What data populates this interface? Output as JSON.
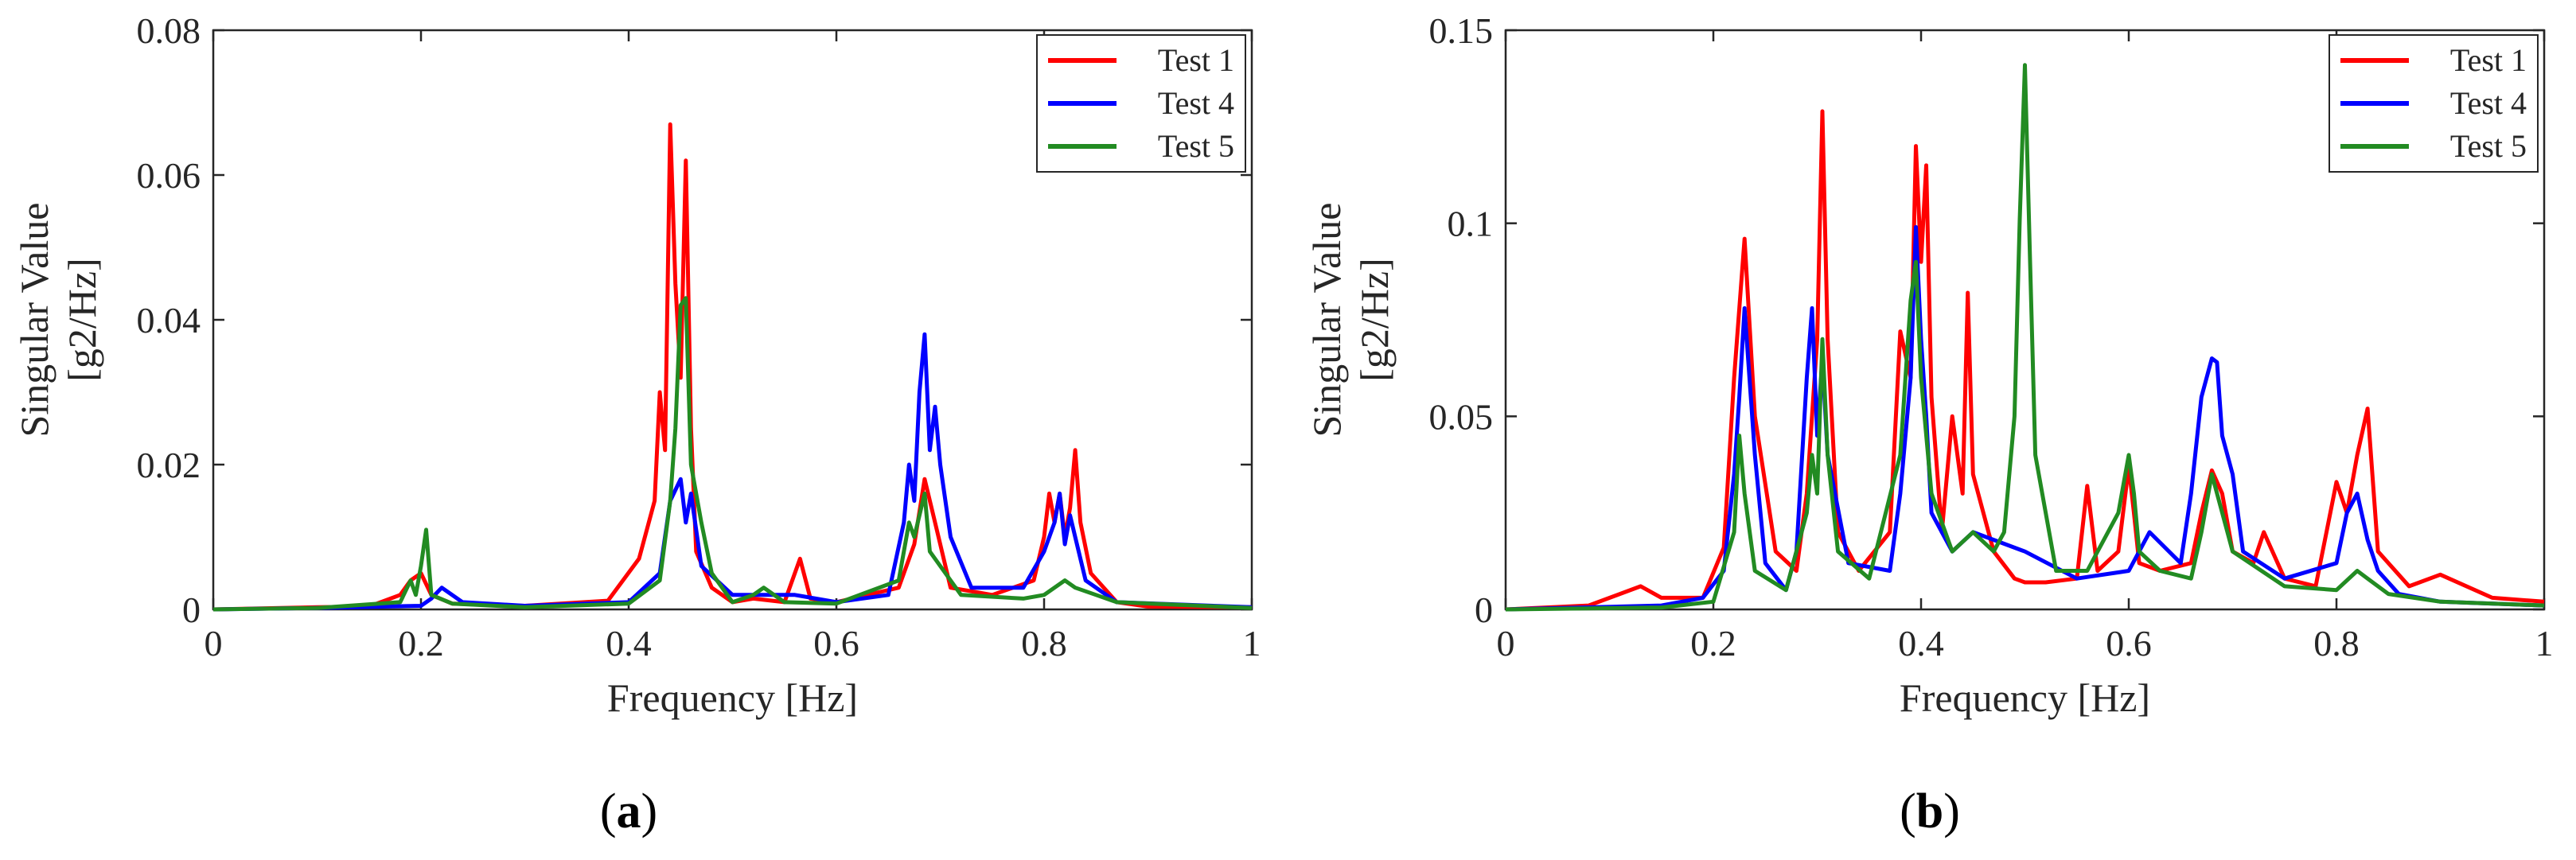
{
  "chart_data": [
    {
      "type": "line",
      "panel_label": "(a)",
      "panel_letter": "a",
      "xlabel": "Frequency [Hz]",
      "ylabel_line1": "Singular Value",
      "ylabel_line2": "[g2/Hz]",
      "xlim": [
        0,
        1
      ],
      "ylim": [
        0,
        0.08
      ],
      "xticks": [
        0,
        0.2,
        0.4,
        0.6,
        0.8,
        1
      ],
      "xtick_labels": [
        "0",
        "0.2",
        "0.4",
        "0.6",
        "0.8",
        "1"
      ],
      "yticks": [
        0,
        0.02,
        0.04,
        0.06,
        0.08
      ],
      "ytick_labels": [
        "0",
        "0.02",
        "0.04",
        "0.06",
        "0.08"
      ],
      "legend_position": "top-right",
      "series": [
        {
          "name": "Test 1",
          "color": "#ff0000",
          "x": [
            0,
            0.1,
            0.15,
            0.18,
            0.19,
            0.2,
            0.21,
            0.23,
            0.3,
            0.38,
            0.41,
            0.425,
            0.43,
            0.435,
            0.44,
            0.445,
            0.45,
            0.455,
            0.46,
            0.465,
            0.48,
            0.5,
            0.52,
            0.55,
            0.565,
            0.575,
            0.6,
            0.66,
            0.675,
            0.685,
            0.695,
            0.71,
            0.75,
            0.79,
            0.8,
            0.805,
            0.81,
            0.815,
            0.82,
            0.825,
            0.83,
            0.835,
            0.845,
            0.87,
            0.9,
            1
          ],
          "y": [
            0,
            0.0003,
            0.0004,
            0.002,
            0.004,
            0.005,
            0.002,
            0.0008,
            0.0005,
            0.0012,
            0.007,
            0.015,
            0.03,
            0.022,
            0.067,
            0.045,
            0.032,
            0.062,
            0.025,
            0.008,
            0.003,
            0.001,
            0.0015,
            0.001,
            0.007,
            0.0015,
            0.001,
            0.003,
            0.009,
            0.018,
            0.012,
            0.003,
            0.002,
            0.004,
            0.01,
            0.016,
            0.012,
            0.016,
            0.01,
            0.014,
            0.022,
            0.012,
            0.005,
            0.001,
            0.0004,
            0.0003
          ]
        },
        {
          "name": "Test 4",
          "color": "#0000ff",
          "x": [
            0,
            0.1,
            0.2,
            0.21,
            0.22,
            0.24,
            0.3,
            0.4,
            0.43,
            0.44,
            0.45,
            0.455,
            0.46,
            0.47,
            0.5,
            0.52,
            0.56,
            0.6,
            0.65,
            0.665,
            0.67,
            0.675,
            0.68,
            0.685,
            0.69,
            0.695,
            0.7,
            0.71,
            0.73,
            0.78,
            0.8,
            0.81,
            0.815,
            0.82,
            0.825,
            0.83,
            0.84,
            0.87,
            1
          ],
          "y": [
            0,
            0.0002,
            0.0005,
            0.0015,
            0.003,
            0.001,
            0.0005,
            0.001,
            0.005,
            0.015,
            0.018,
            0.012,
            0.016,
            0.006,
            0.002,
            0.002,
            0.002,
            0.001,
            0.002,
            0.012,
            0.02,
            0.015,
            0.03,
            0.038,
            0.022,
            0.028,
            0.02,
            0.01,
            0.003,
            0.003,
            0.008,
            0.012,
            0.016,
            0.009,
            0.013,
            0.01,
            0.004,
            0.001,
            0.0003
          ]
        },
        {
          "name": "Test 5",
          "color": "#228b22",
          "x": [
            0,
            0.1,
            0.18,
            0.19,
            0.195,
            0.2,
            0.205,
            0.21,
            0.23,
            0.3,
            0.4,
            0.43,
            0.44,
            0.445,
            0.45,
            0.455,
            0.46,
            0.47,
            0.48,
            0.5,
            0.52,
            0.53,
            0.55,
            0.6,
            0.66,
            0.67,
            0.675,
            0.685,
            0.69,
            0.7,
            0.72,
            0.78,
            0.8,
            0.82,
            0.83,
            0.85,
            0.87,
            1
          ],
          "y": [
            0,
            0.0002,
            0.001,
            0.004,
            0.002,
            0.006,
            0.011,
            0.002,
            0.0008,
            0.0003,
            0.0008,
            0.004,
            0.015,
            0.025,
            0.042,
            0.043,
            0.02,
            0.012,
            0.005,
            0.001,
            0.002,
            0.003,
            0.001,
            0.0008,
            0.004,
            0.012,
            0.01,
            0.016,
            0.008,
            0.006,
            0.002,
            0.0015,
            0.002,
            0.004,
            0.003,
            0.002,
            0.001,
            0.0002
          ]
        }
      ]
    },
    {
      "type": "line",
      "panel_label": "(b)",
      "panel_letter": "b",
      "xlabel": "Frequency [Hz]",
      "ylabel_line1": "Singular Value",
      "ylabel_line2": "[g2/Hz]",
      "xlim": [
        0,
        1
      ],
      "ylim": [
        0,
        0.15
      ],
      "xticks": [
        0,
        0.2,
        0.4,
        0.6,
        0.8,
        1
      ],
      "xtick_labels": [
        "0",
        "0.2",
        "0.4",
        "0.6",
        "0.8",
        "1"
      ],
      "yticks": [
        0,
        0.05,
        0.1,
        0.15
      ],
      "ytick_labels": [
        "0",
        "0.05",
        "0.1",
        "0.15"
      ],
      "legend_position": "top-right",
      "series": [
        {
          "name": "Test 1",
          "color": "#ff0000",
          "x": [
            0,
            0.08,
            0.13,
            0.15,
            0.19,
            0.21,
            0.22,
            0.23,
            0.24,
            0.26,
            0.28,
            0.29,
            0.3,
            0.305,
            0.31,
            0.32,
            0.34,
            0.37,
            0.38,
            0.39,
            0.395,
            0.4,
            0.405,
            0.41,
            0.42,
            0.43,
            0.44,
            0.445,
            0.45,
            0.47,
            0.49,
            0.5,
            0.52,
            0.55,
            0.56,
            0.57,
            0.59,
            0.6,
            0.605,
            0.61,
            0.63,
            0.66,
            0.67,
            0.68,
            0.69,
            0.7,
            0.72,
            0.73,
            0.75,
            0.78,
            0.8,
            0.81,
            0.82,
            0.83,
            0.84,
            0.87,
            0.9,
            0.95,
            1
          ],
          "y": [
            0,
            0.001,
            0.006,
            0.003,
            0.003,
            0.016,
            0.06,
            0.096,
            0.05,
            0.015,
            0.01,
            0.03,
            0.07,
            0.129,
            0.07,
            0.02,
            0.01,
            0.02,
            0.072,
            0.06,
            0.12,
            0.09,
            0.115,
            0.055,
            0.02,
            0.05,
            0.03,
            0.082,
            0.035,
            0.015,
            0.008,
            0.007,
            0.007,
            0.008,
            0.032,
            0.01,
            0.015,
            0.037,
            0.025,
            0.012,
            0.01,
            0.012,
            0.025,
            0.036,
            0.03,
            0.015,
            0.012,
            0.02,
            0.008,
            0.006,
            0.033,
            0.025,
            0.04,
            0.052,
            0.015,
            0.006,
            0.009,
            0.003,
            0.002
          ]
        },
        {
          "name": "Test 4",
          "color": "#0000ff",
          "x": [
            0,
            0.15,
            0.19,
            0.21,
            0.22,
            0.225,
            0.23,
            0.24,
            0.25,
            0.27,
            0.28,
            0.29,
            0.295,
            0.3,
            0.305,
            0.31,
            0.33,
            0.37,
            0.38,
            0.39,
            0.395,
            0.4,
            0.405,
            0.41,
            0.43,
            0.45,
            0.5,
            0.55,
            0.6,
            0.62,
            0.65,
            0.66,
            0.67,
            0.68,
            0.685,
            0.69,
            0.7,
            0.71,
            0.75,
            0.8,
            0.81,
            0.82,
            0.83,
            0.84,
            0.86,
            0.9,
            1
          ],
          "y": [
            0,
            0.001,
            0.003,
            0.01,
            0.035,
            0.055,
            0.078,
            0.04,
            0.012,
            0.005,
            0.015,
            0.06,
            0.078,
            0.045,
            0.065,
            0.04,
            0.012,
            0.01,
            0.03,
            0.06,
            0.099,
            0.07,
            0.05,
            0.025,
            0.015,
            0.02,
            0.015,
            0.008,
            0.01,
            0.02,
            0.012,
            0.03,
            0.055,
            0.065,
            0.064,
            0.045,
            0.035,
            0.015,
            0.008,
            0.012,
            0.025,
            0.03,
            0.018,
            0.01,
            0.004,
            0.002,
            0.001
          ]
        },
        {
          "name": "Test 5",
          "color": "#228b22",
          "x": [
            0,
            0.15,
            0.2,
            0.22,
            0.225,
            0.23,
            0.24,
            0.27,
            0.29,
            0.295,
            0.3,
            0.305,
            0.31,
            0.32,
            0.35,
            0.38,
            0.39,
            0.395,
            0.4,
            0.41,
            0.43,
            0.45,
            0.47,
            0.48,
            0.49,
            0.495,
            0.5,
            0.505,
            0.51,
            0.53,
            0.56,
            0.59,
            0.6,
            0.605,
            0.61,
            0.63,
            0.66,
            0.67,
            0.68,
            0.7,
            0.75,
            0.8,
            0.82,
            0.83,
            0.85,
            0.9,
            1
          ],
          "y": [
            0,
            0.0005,
            0.002,
            0.02,
            0.045,
            0.03,
            0.01,
            0.005,
            0.025,
            0.04,
            0.03,
            0.07,
            0.04,
            0.015,
            0.008,
            0.04,
            0.08,
            0.09,
            0.06,
            0.03,
            0.015,
            0.02,
            0.015,
            0.02,
            0.05,
            0.101,
            0.141,
            0.09,
            0.04,
            0.01,
            0.01,
            0.025,
            0.04,
            0.03,
            0.015,
            0.01,
            0.008,
            0.02,
            0.035,
            0.015,
            0.006,
            0.005,
            0.01,
            0.008,
            0.004,
            0.002,
            0.001
          ]
        }
      ]
    }
  ]
}
